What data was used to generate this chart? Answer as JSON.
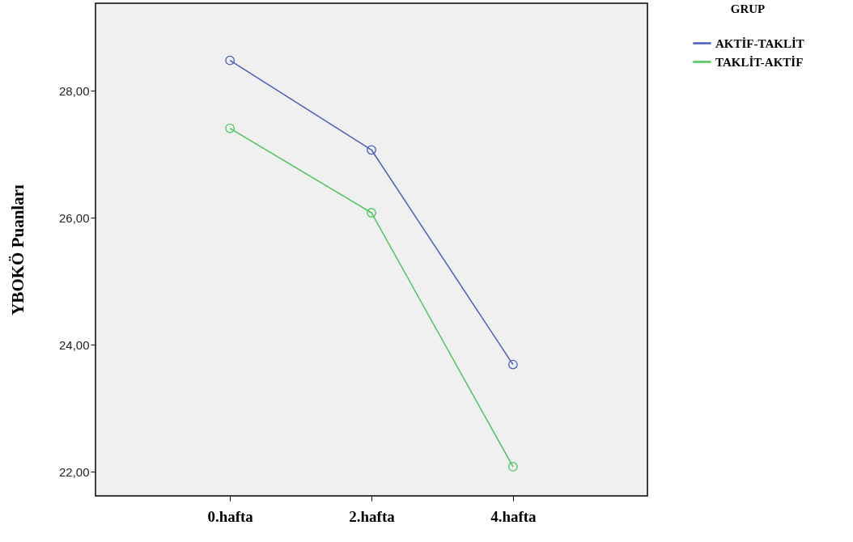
{
  "chart_data": {
    "type": "line",
    "ylabel": "YBOKÖ Puanları",
    "legend_title": "GRUP",
    "legend": "top right",
    "marker": "circle",
    "line_style": "solid",
    "grid": false,
    "categories": [
      "0.hafta",
      "2.hafta",
      "4.hafta"
    ],
    "ylim": [
      21.62,
      29.38
    ],
    "yticks": [
      {
        "value": 22,
        "label": "22,00"
      },
      {
        "value": 24,
        "label": "24,00"
      },
      {
        "value": 26,
        "label": "26,00"
      },
      {
        "value": 28,
        "label": "28,00"
      }
    ],
    "series": [
      {
        "name": "AKTİF-TAKLİT",
        "color": "#4a5fbd",
        "values": [
          28.48,
          27.07,
          23.69
        ]
      },
      {
        "name": "TAKLİT-AKTİF",
        "color": "#4cc65a",
        "values": [
          27.41,
          26.08,
          22.08
        ]
      }
    ]
  }
}
